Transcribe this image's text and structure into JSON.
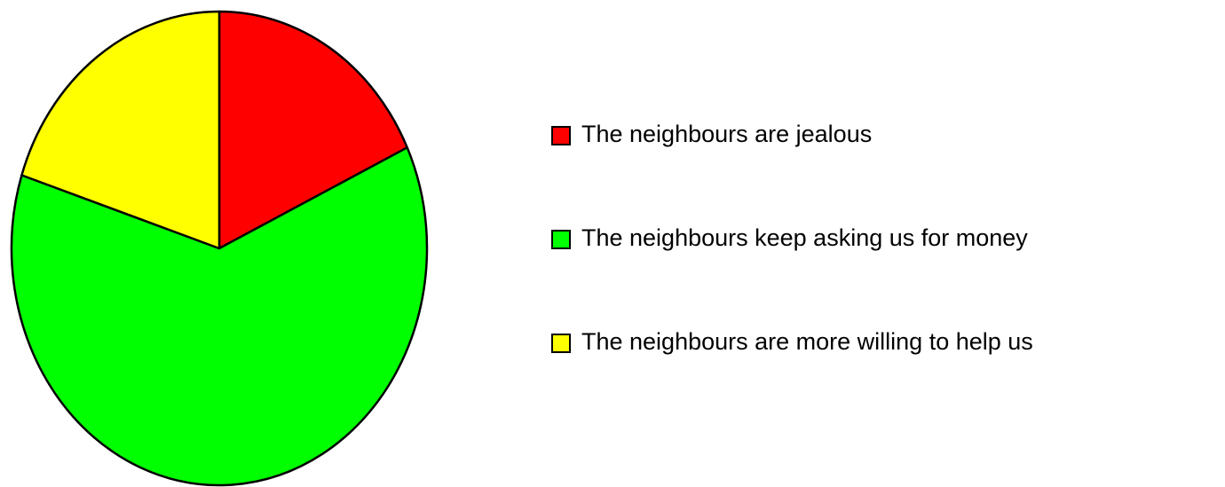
{
  "chart_data": {
    "type": "pie",
    "categories": [
      "The neighbours are jealous",
      "The neighbours keep asking us for money",
      "The neighbours are more willing to help us"
    ],
    "values": [
      18,
      62,
      20
    ],
    "colors": [
      "#ff0000",
      "#00ff00",
      "#ffff00"
    ],
    "legend": "right"
  }
}
